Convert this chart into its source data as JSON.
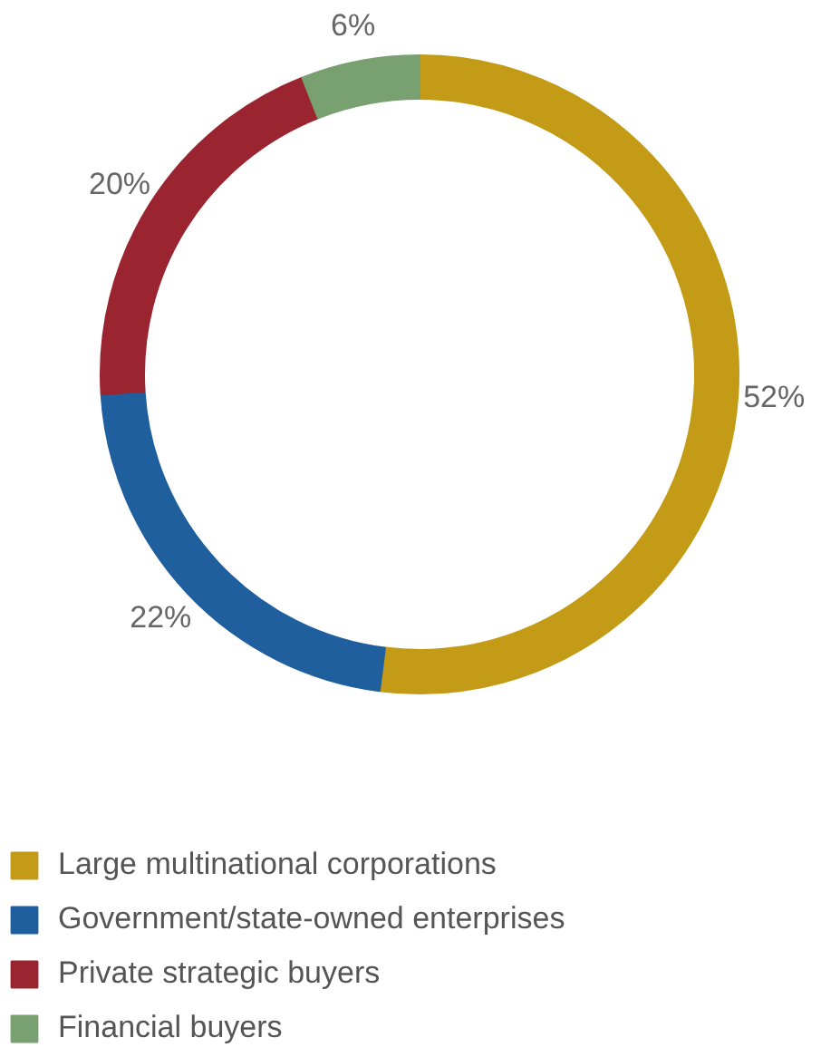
{
  "chart_data": {
    "type": "donut",
    "categories": [
      "Large multinational corporations",
      "Government/state-owned enterprises",
      "Private strategic buyers",
      "Financial buyers"
    ],
    "values": [
      52,
      22,
      20,
      6
    ],
    "colors": [
      "#c39b17",
      "#1f5f9e",
      "#9a2530",
      "#78a070"
    ],
    "value_labels": [
      "52%",
      "22%",
      "20%",
      "6%"
    ],
    "legend": "bottom left"
  }
}
